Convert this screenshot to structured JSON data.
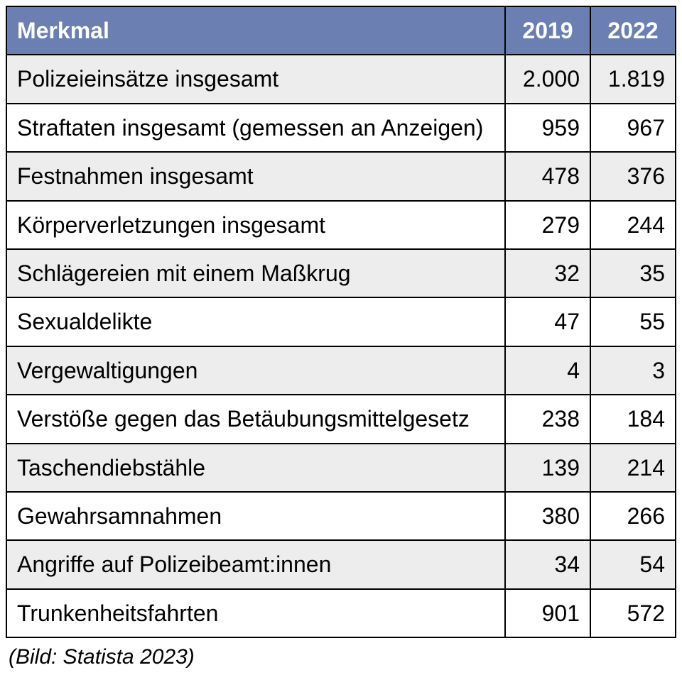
{
  "table": {
    "type": "table",
    "header_bg_color": "#6b7fb3",
    "header_text_color": "#ffffff",
    "row_alt_bg_color": "#ededed",
    "row_bg_color": "#ffffff",
    "border_color": "#000000",
    "border_width": 2,
    "font_size": 32,
    "columns": [
      {
        "label": "Merkmal",
        "align": "left"
      },
      {
        "label": "2019",
        "align": "right",
        "width": 120
      },
      {
        "label": "2022",
        "align": "right",
        "width": 120
      }
    ],
    "rows": [
      {
        "label": "Polizeieinsätze insgesamt",
        "v2019": "2.000",
        "v2022": "1.819"
      },
      {
        "label": "Straftaten insgesamt (gemessen an Anzeigen)",
        "v2019": "959",
        "v2022": "967"
      },
      {
        "label": "Festnahmen insgesamt",
        "v2019": "478",
        "v2022": "376"
      },
      {
        "label": "Körperverletzungen insgesamt",
        "v2019": "279",
        "v2022": "244"
      },
      {
        "label": "Schlägereien mit einem Maßkrug",
        "v2019": "32",
        "v2022": "35"
      },
      {
        "label": "Sexualdelikte",
        "v2019": "47",
        "v2022": "55"
      },
      {
        "label": "Vergewaltigungen",
        "v2019": "4",
        "v2022": "3"
      },
      {
        "label": "Verstöße gegen das Betäubungsmittelgesetz",
        "v2019": "238",
        "v2022": "184"
      },
      {
        "label": "Taschendiebstähle",
        "v2019": "139",
        "v2022": "214"
      },
      {
        "label": "Gewahrsamnahmen",
        "v2019": "380",
        "v2022": "266"
      },
      {
        "label": "Angriffe auf Polizeibeamt:innen",
        "v2019": "34",
        "v2022": "54"
      },
      {
        "label": "Trunkenheitsfahrten",
        "v2019": "901",
        "v2022": "572"
      }
    ]
  },
  "caption": "(Bild: Statista 2023)"
}
